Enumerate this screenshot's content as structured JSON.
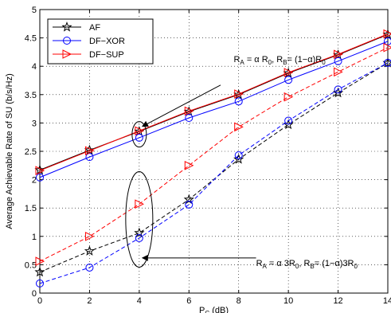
{
  "chart_data": {
    "type": "line",
    "xlabel": {
      "main": "P",
      "sub": "C",
      "rest": " (dB)"
    },
    "ylabel": "Average Achievable Rate of SU (b/s/Hz)",
    "xlim": [
      0,
      14
    ],
    "ylim": [
      0,
      5
    ],
    "xticks": [
      "0",
      "2",
      "4",
      "6",
      "8",
      "10",
      "12",
      "14"
    ],
    "yticks": [
      "0",
      "0.5",
      "1",
      "1.5",
      "2",
      "2.5",
      "3",
      "3.5",
      "4",
      "4.5",
      "5"
    ],
    "grid": true,
    "legend_position": "top-left",
    "x": [
      0,
      2,
      4,
      6,
      8,
      10,
      12,
      14
    ],
    "series": [
      {
        "name": "AF",
        "group": "upper",
        "marker": "star",
        "color": "#000000",
        "dash": "solid",
        "values": [
          2.17,
          2.52,
          2.85,
          3.2,
          3.5,
          3.88,
          4.2,
          4.56
        ]
      },
      {
        "name": "DF−XOR",
        "group": "upper",
        "marker": "circle",
        "color": "#0000ff",
        "dash": "solid",
        "values": [
          2.04,
          2.4,
          2.74,
          3.09,
          3.38,
          3.76,
          4.09,
          4.44
        ]
      },
      {
        "name": "DF−SUP",
        "group": "upper",
        "marker": "triangle-right",
        "color": "#ff0000",
        "dash": "solid",
        "values": [
          2.16,
          2.51,
          2.86,
          3.21,
          3.51,
          3.89,
          4.21,
          4.57
        ]
      },
      {
        "name": "AF",
        "group": "lower",
        "marker": "star",
        "color": "#000000",
        "dash": "dashed",
        "values": [
          0.37,
          0.74,
          1.06,
          1.65,
          2.36,
          2.97,
          3.53,
          4.06
        ]
      },
      {
        "name": "DF−XOR",
        "group": "lower",
        "marker": "circle",
        "color": "#0000ff",
        "dash": "dashed",
        "values": [
          0.17,
          0.45,
          0.97,
          1.56,
          2.43,
          3.04,
          3.59,
          4.06
        ]
      },
      {
        "name": "DF−SUP",
        "group": "lower",
        "marker": "triangle-right",
        "color": "#ff0000",
        "dash": "dashed",
        "values": [
          0.56,
          1.0,
          1.57,
          2.25,
          2.93,
          3.46,
          3.9,
          4.33
        ]
      }
    ],
    "legend": [
      "AF",
      "DF−XOR",
      "DF−SUP"
    ],
    "annotations": [
      {
        "id": "upper",
        "parts": [
          [
            "R",
            ""
          ],
          [
            "A",
            "sub"
          ],
          [
            " = α R",
            ""
          ],
          [
            "0",
            "sub"
          ],
          [
            ", R",
            ""
          ],
          [
            "B",
            "sub"
          ],
          [
            "= (1−α)R",
            ""
          ],
          [
            "0",
            "sub"
          ]
        ],
        "ellipse_center": [
          4,
          2.8
        ],
        "arrow_from": [
          7.4,
          3.5
        ]
      },
      {
        "id": "lower",
        "parts": [
          [
            "R",
            ""
          ],
          [
            "A",
            "sub"
          ],
          [
            " = α 3R",
            ""
          ],
          [
            "0",
            "sub"
          ],
          [
            ", R",
            ""
          ],
          [
            "B",
            "sub"
          ],
          [
            "= (1−α)3R",
            ""
          ],
          [
            "0",
            "sub"
          ]
        ],
        "ellipse_center": [
          4,
          1.3
        ],
        "arrow_from": [
          8.7,
          0.62
        ]
      }
    ]
  }
}
